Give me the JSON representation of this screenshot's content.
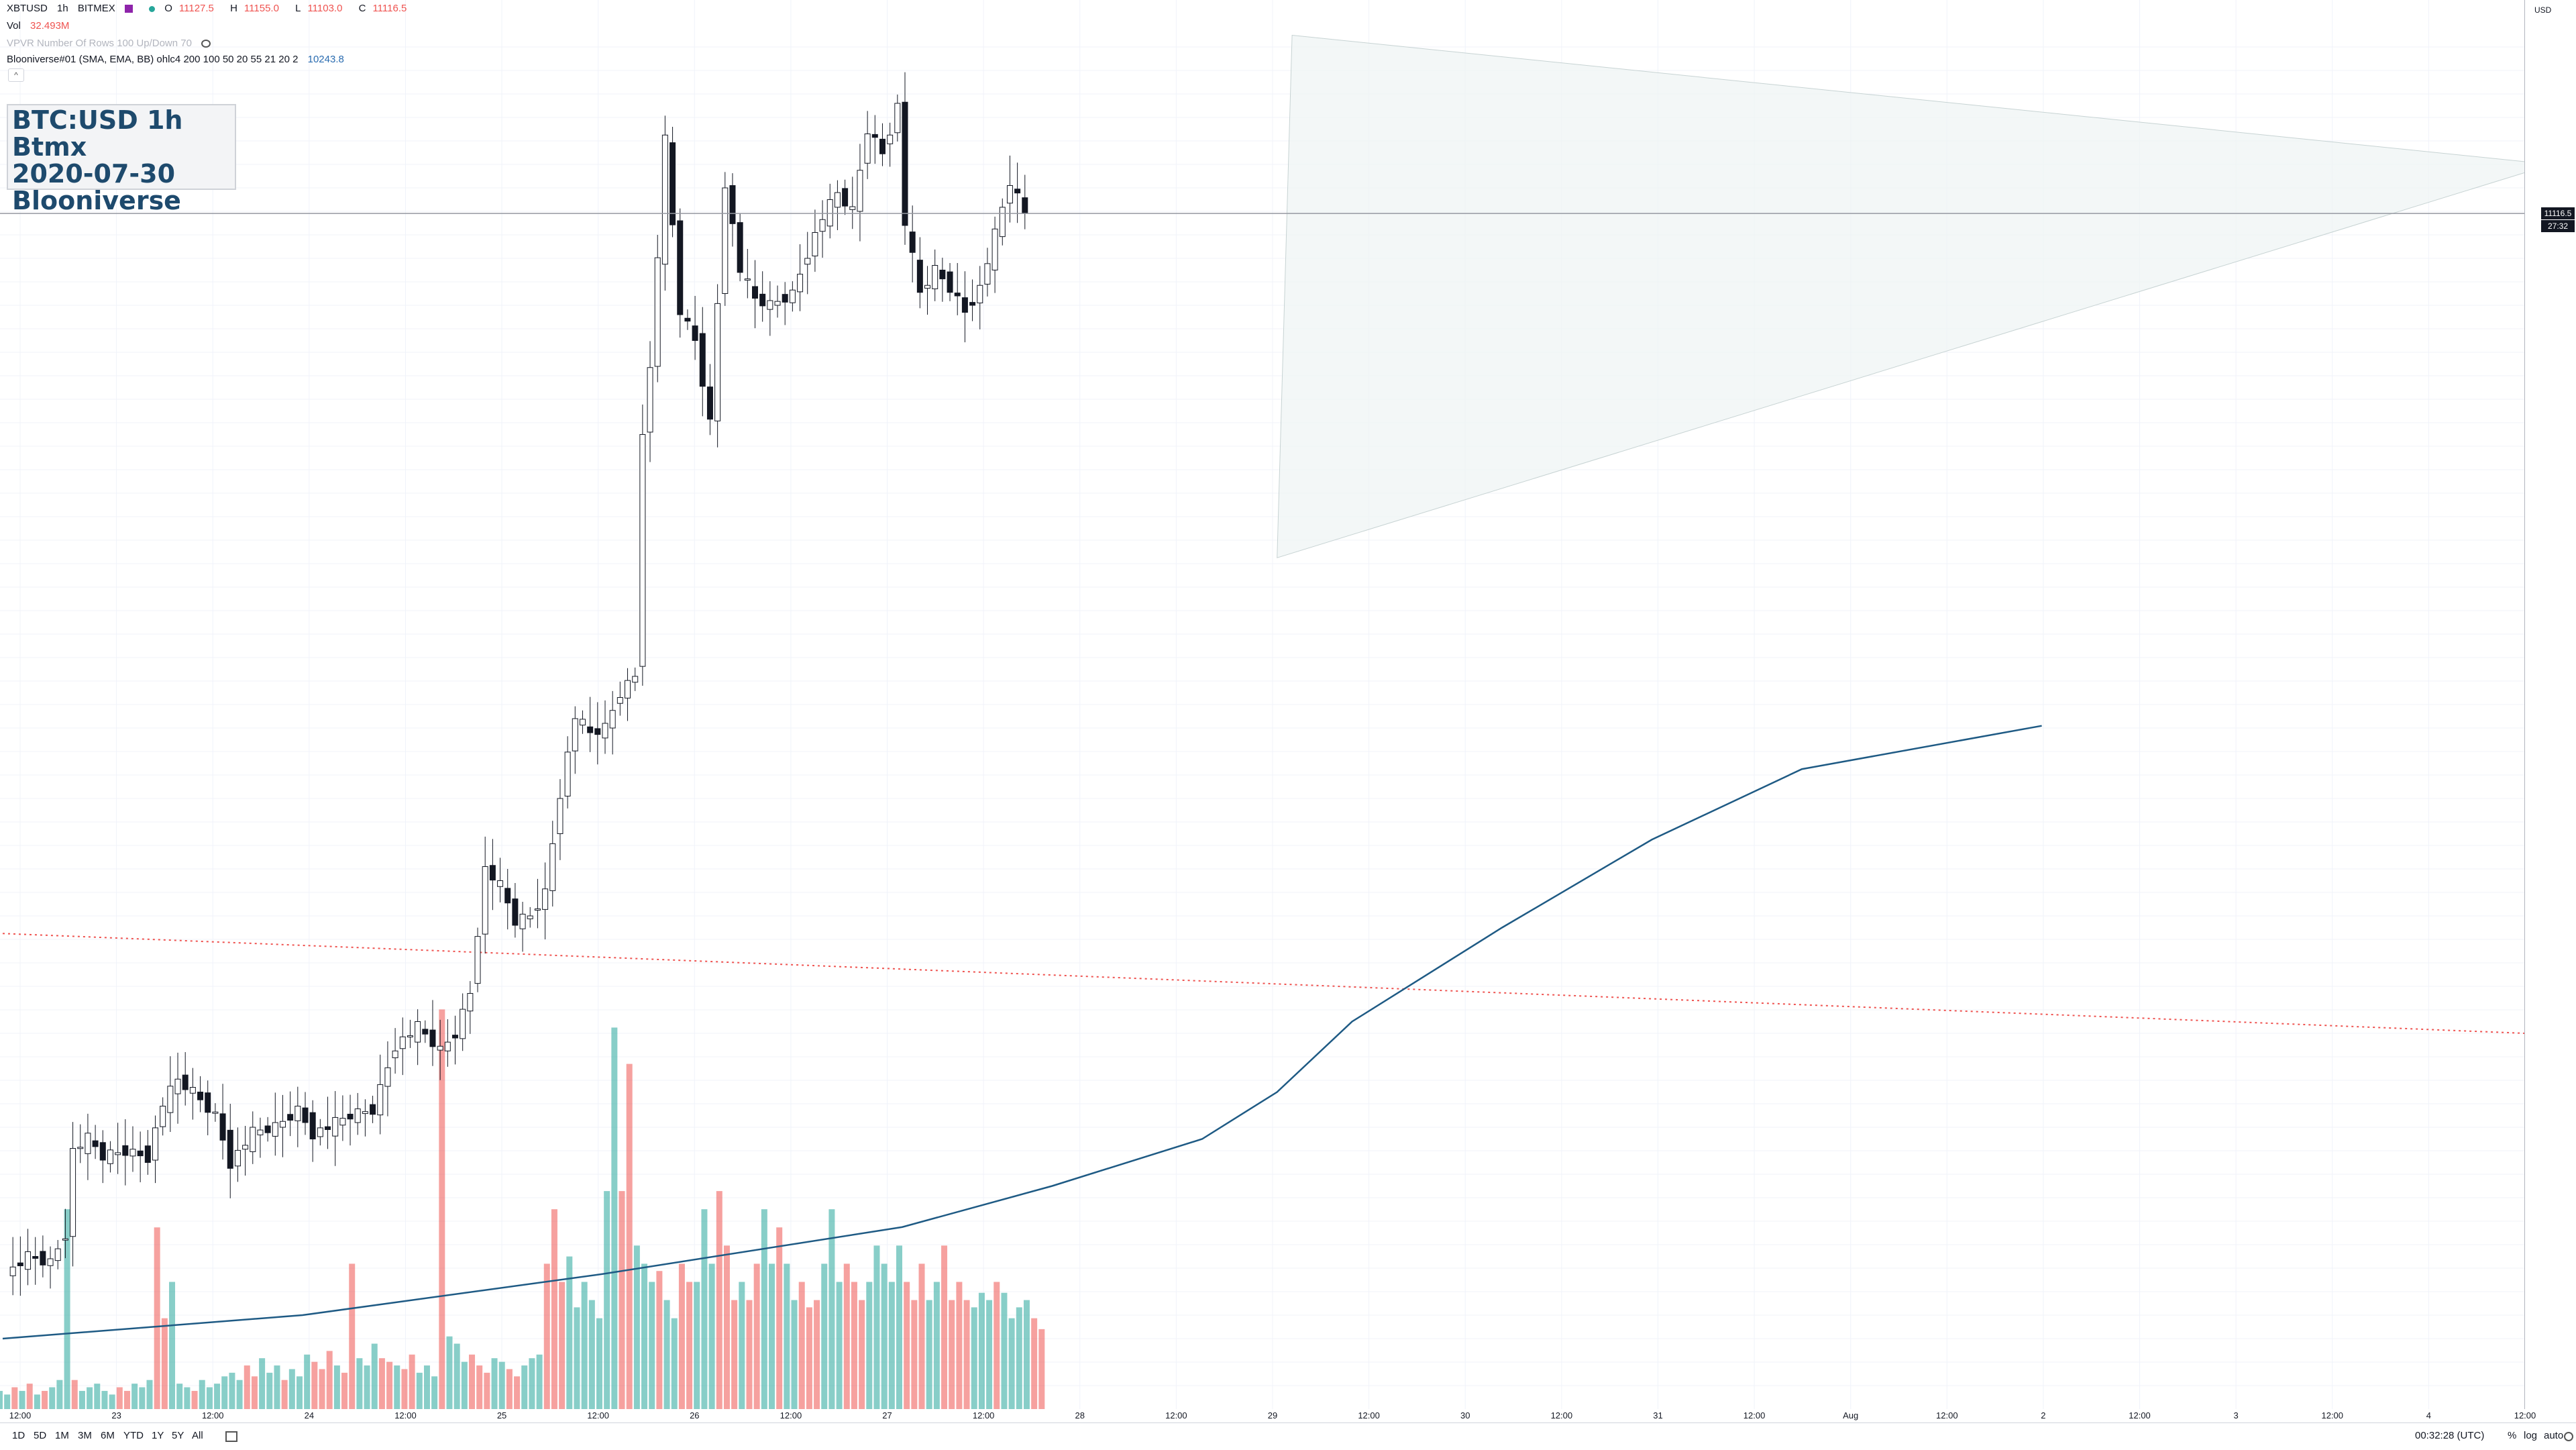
{
  "legend": {
    "symbol": "XBTUSD",
    "interval": "1h",
    "exchange": "BITMEX",
    "ohlc": [
      {
        "label": "O",
        "value": "11127.5"
      },
      {
        "label": "H",
        "value": "11155.0"
      },
      {
        "label": "L",
        "value": "11103.0"
      },
      {
        "label": "C",
        "value": "11116.5"
      }
    ],
    "vol_label": "Vol",
    "vol_value": "32.493M",
    "vpvr_text": "VPVR Number Of Rows 100 Up/Down 70",
    "indicator_name": "Blooniverse#01 (SMA, EMA, BB) ohlc4 200 100 50 20 55 21 20 2",
    "indicator_value": "10243.8",
    "collapse_glyph": "^"
  },
  "title_box": {
    "line1": "BTC:USD 1h Btmx",
    "line2": "2020-07-30",
    "line3": "Blooniverse"
  },
  "price_axis": {
    "unit": "USD",
    "last_price": "11116.5",
    "countdown": "27:32"
  },
  "bottom_bar": {
    "ranges": [
      "1D",
      "5D",
      "1M",
      "3M",
      "6M",
      "YTD",
      "1Y",
      "5Y",
      "All"
    ],
    "clock": "00:32:28 (UTC)",
    "percent": "%",
    "log": "log",
    "auto": "auto"
  },
  "colors": {
    "up_volume": "#26a69a",
    "down_volume": "#ef5350",
    "ma_line": "#1e5a84",
    "triangle_fill": "#eef3f3",
    "dotted_line": "#ef5350"
  },
  "chart_data": {
    "type": "candlestick",
    "symbol": "XBTUSD",
    "interval": "1h",
    "ylim": [
      9080,
      11480
    ],
    "yticks": [
      9120,
      9160,
      9200,
      9240,
      9280,
      9320,
      9360,
      9400,
      9440,
      9480,
      9520,
      9560,
      9600,
      9640,
      9680,
      9720,
      9760,
      9800,
      9840,
      9880,
      9920,
      9960,
      10000,
      10040,
      10080,
      10120,
      10160,
      10200,
      10240,
      10280,
      10320,
      10360,
      10400,
      10440,
      10480,
      10520,
      10560,
      10600,
      10640,
      10680,
      10720,
      10760,
      10800,
      10840,
      10880,
      10920,
      10960,
      11000,
      11040,
      11080,
      11120,
      11160,
      11200,
      11240,
      11280,
      11320,
      11360,
      11400
    ],
    "xticks": [
      "12:00",
      "23",
      "12:00",
      "24",
      "12:00",
      "25",
      "12:00",
      "26",
      "12:00",
      "27",
      "12:00",
      "28",
      "12:00",
      "29",
      "12:00",
      "30",
      "12:00",
      "31",
      "12:00",
      "Aug",
      "12:00",
      "2",
      "12:00",
      "3",
      "12:00",
      "4",
      "12:00"
    ],
    "close_path": [
      [
        0,
        9310
      ],
      [
        3,
        9340
      ],
      [
        6,
        9330
      ],
      [
        8,
        9380
      ],
      [
        9,
        9520
      ],
      [
        11,
        9540
      ],
      [
        13,
        9510
      ],
      [
        16,
        9520
      ],
      [
        19,
        9510
      ],
      [
        21,
        9600
      ],
      [
        23,
        9640
      ],
      [
        25,
        9620
      ],
      [
        28,
        9580
      ],
      [
        30,
        9500
      ],
      [
        33,
        9550
      ],
      [
        36,
        9560
      ],
      [
        39,
        9590
      ],
      [
        41,
        9550
      ],
      [
        43,
        9560
      ],
      [
        46,
        9580
      ],
      [
        49,
        9590
      ],
      [
        52,
        9700
      ],
      [
        55,
        9730
      ],
      [
        58,
        9690
      ],
      [
        60,
        9720
      ],
      [
        62,
        9790
      ],
      [
        64,
        10000
      ],
      [
        66,
        9970
      ],
      [
        68,
        9910
      ],
      [
        70,
        9920
      ],
      [
        72,
        9960
      ],
      [
        74,
        10130
      ],
      [
        76,
        10260
      ],
      [
        78,
        10230
      ],
      [
        80,
        10240
      ],
      [
        82,
        10300
      ],
      [
        84,
        10330
      ],
      [
        85,
        10750
      ],
      [
        86,
        10850
      ],
      [
        88,
        11240
      ],
      [
        90,
        10950
      ],
      [
        92,
        10900
      ],
      [
        94,
        10760
      ],
      [
        96,
        11170
      ],
      [
        98,
        11020
      ],
      [
        100,
        10970
      ],
      [
        102,
        10960
      ],
      [
        105,
        10980
      ],
      [
        107,
        11050
      ],
      [
        109,
        11110
      ],
      [
        111,
        11150
      ],
      [
        113,
        11120
      ],
      [
        115,
        11260
      ],
      [
        117,
        11220
      ],
      [
        119,
        11300
      ],
      [
        120,
        11100
      ],
      [
        122,
        10980
      ],
      [
        124,
        11020
      ],
      [
        126,
        10990
      ],
      [
        128,
        10950
      ],
      [
        130,
        10990
      ],
      [
        132,
        11080
      ],
      [
        134,
        11170
      ],
      [
        136,
        11116.5
      ]
    ],
    "ma_line": [
      [
        0,
        9200
      ],
      [
        20,
        9240
      ],
      [
        40,
        9310
      ],
      [
        60,
        9390
      ],
      [
        70,
        9460
      ],
      [
        80,
        9540
      ],
      [
        85,
        9620
      ],
      [
        90,
        9740
      ],
      [
        100,
        9900
      ],
      [
        110,
        10050
      ],
      [
        120,
        10170
      ],
      [
        136,
        10243.8
      ]
    ],
    "triangle_pattern": {
      "apex_bar": 170,
      "apex_price": 11200,
      "upper_start": [
        86,
        11420
      ],
      "lower_start": [
        85,
        10530
      ]
    },
    "dotted_trend": [
      [
        0,
        9890
      ],
      [
        220,
        9720
      ]
    ],
    "last_price_line": 11116.5,
    "volume": {
      "ylim": [
        0,
        100
      ],
      "values": [
        5,
        4,
        6,
        5,
        7,
        4,
        5,
        6,
        8,
        55,
        8,
        5,
        6,
        7,
        5,
        4,
        6,
        5,
        7,
        6,
        8,
        50,
        25,
        35,
        7,
        6,
        5,
        8,
        6,
        7,
        9,
        10,
        8,
        12,
        9,
        14,
        10,
        12,
        8,
        11,
        9,
        15,
        13,
        11,
        16,
        12,
        10,
        40,
        14,
        12,
        18,
        14,
        13,
        12,
        11,
        15,
        10,
        12,
        9,
        110,
        20,
        18,
        13,
        15,
        12,
        10,
        14,
        13,
        11,
        9,
        12,
        14,
        15,
        40,
        55,
        35,
        42,
        28,
        35,
        30,
        25,
        60,
        105,
        60,
        95,
        45,
        40,
        35,
        38,
        30,
        25,
        40,
        35,
        35,
        55,
        40,
        60,
        45,
        30,
        35,
        30,
        40,
        55,
        40,
        50,
        40,
        30,
        35,
        28,
        30,
        40,
        55,
        35,
        40,
        35,
        30,
        35,
        45,
        40,
        35,
        45,
        35,
        30,
        40,
        30,
        35,
        45,
        30,
        35,
        30,
        28,
        32,
        30,
        35,
        32,
        25,
        28,
        30,
        25,
        22
      ],
      "directions": "uudududuuuduuuuudduuudduuuduuuuuudduuuduuudddudduuuddudduuuduuuddduudduuuddduuuuuuudduuuduudduuudddudduuduuddduuuddduuuuuddduudddduuuduuuudd"
    }
  }
}
